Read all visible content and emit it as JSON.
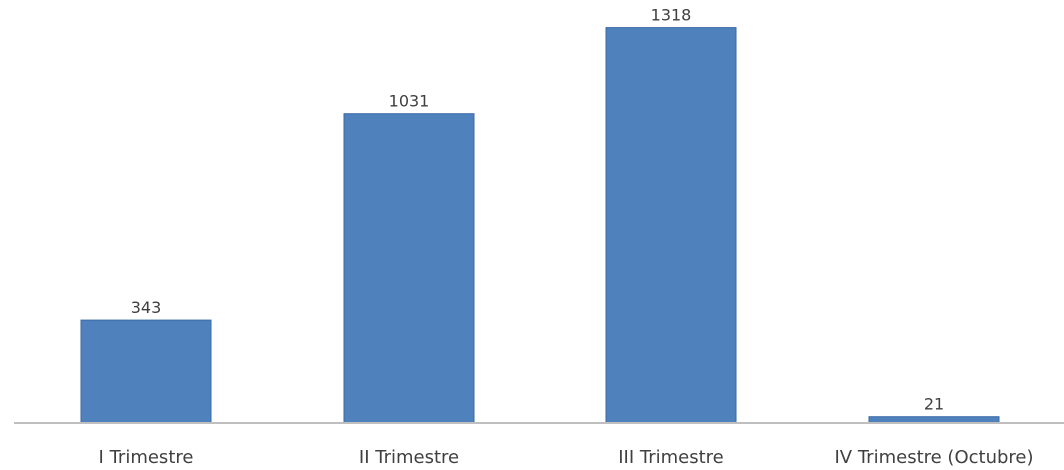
{
  "chart_data": {
    "type": "bar",
    "categories": [
      "I Trimestre",
      "II Trimestre",
      "III Trimestre",
      "IV Trimestre (Octubre)"
    ],
    "values": [
      343,
      1031,
      1318,
      21
    ],
    "title": "",
    "xlabel": "",
    "ylabel": "",
    "ylim": [
      0,
      1400
    ],
    "grid": false,
    "legend": "none",
    "data_labels": true,
    "bar_color": "#4f81bd",
    "axis_color": "#bfbfbf"
  }
}
